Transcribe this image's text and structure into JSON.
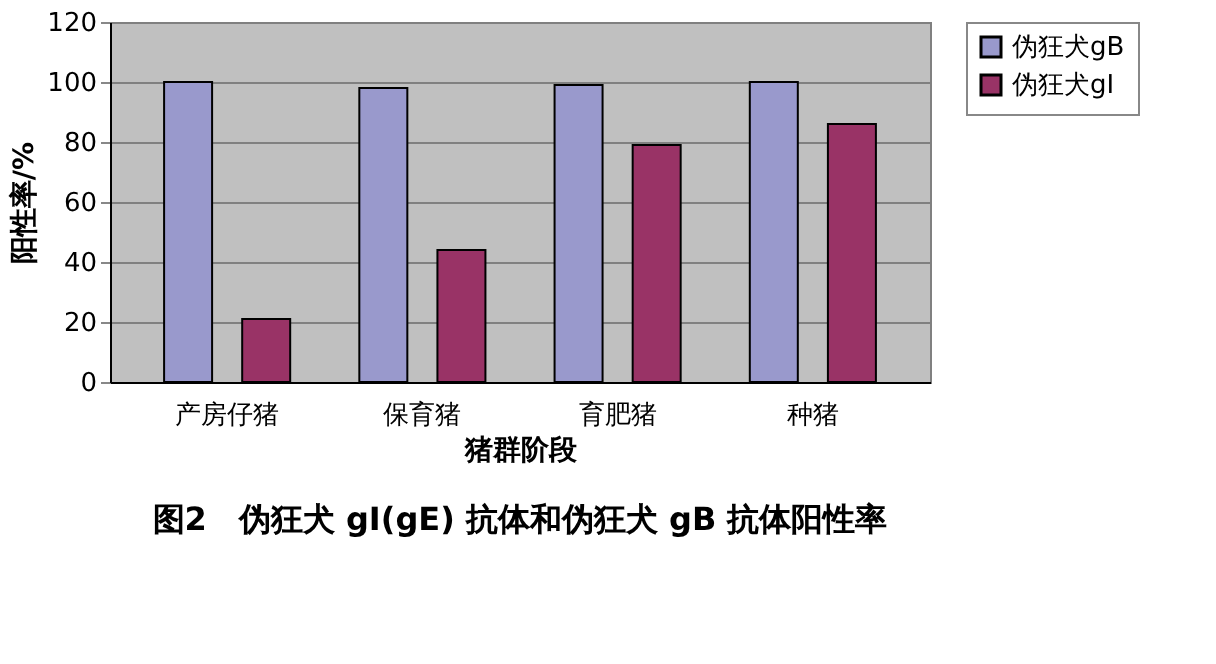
{
  "chart_data": {
    "type": "bar",
    "title": "图2　伪狂犬 gI(gE) 抗体和伪狂犬 gB 抗体阳性率",
    "xlabel": "猪群阶段",
    "ylabel": "阳性率/%",
    "categories": [
      "产房仔猪",
      "保育猪",
      "育肥猪",
      "种猪"
    ],
    "series": [
      {
        "name": "伪狂犬gB",
        "color": "#9999cc",
        "values": [
          100,
          98,
          99,
          100
        ]
      },
      {
        "name": "伪狂犬gI",
        "color": "#993366",
        "values": [
          21,
          44,
          79,
          86
        ]
      }
    ],
    "ylim": [
      0,
      120
    ],
    "yticks": [
      0,
      20,
      40,
      60,
      80,
      100,
      120
    ],
    "grid": "y",
    "legend": "right"
  }
}
